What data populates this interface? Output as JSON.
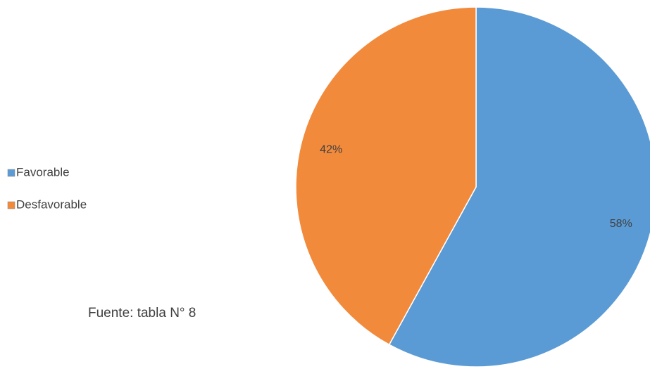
{
  "chart_data": {
    "type": "pie",
    "categories": [
      "Favorable",
      "Desfavorable"
    ],
    "values": [
      58,
      42
    ],
    "value_labels": [
      "58%",
      "42%"
    ],
    "colors": [
      "#5b9bd5",
      "#f28a3c"
    ],
    "annotation": "Fuente: tabla N° 8"
  }
}
